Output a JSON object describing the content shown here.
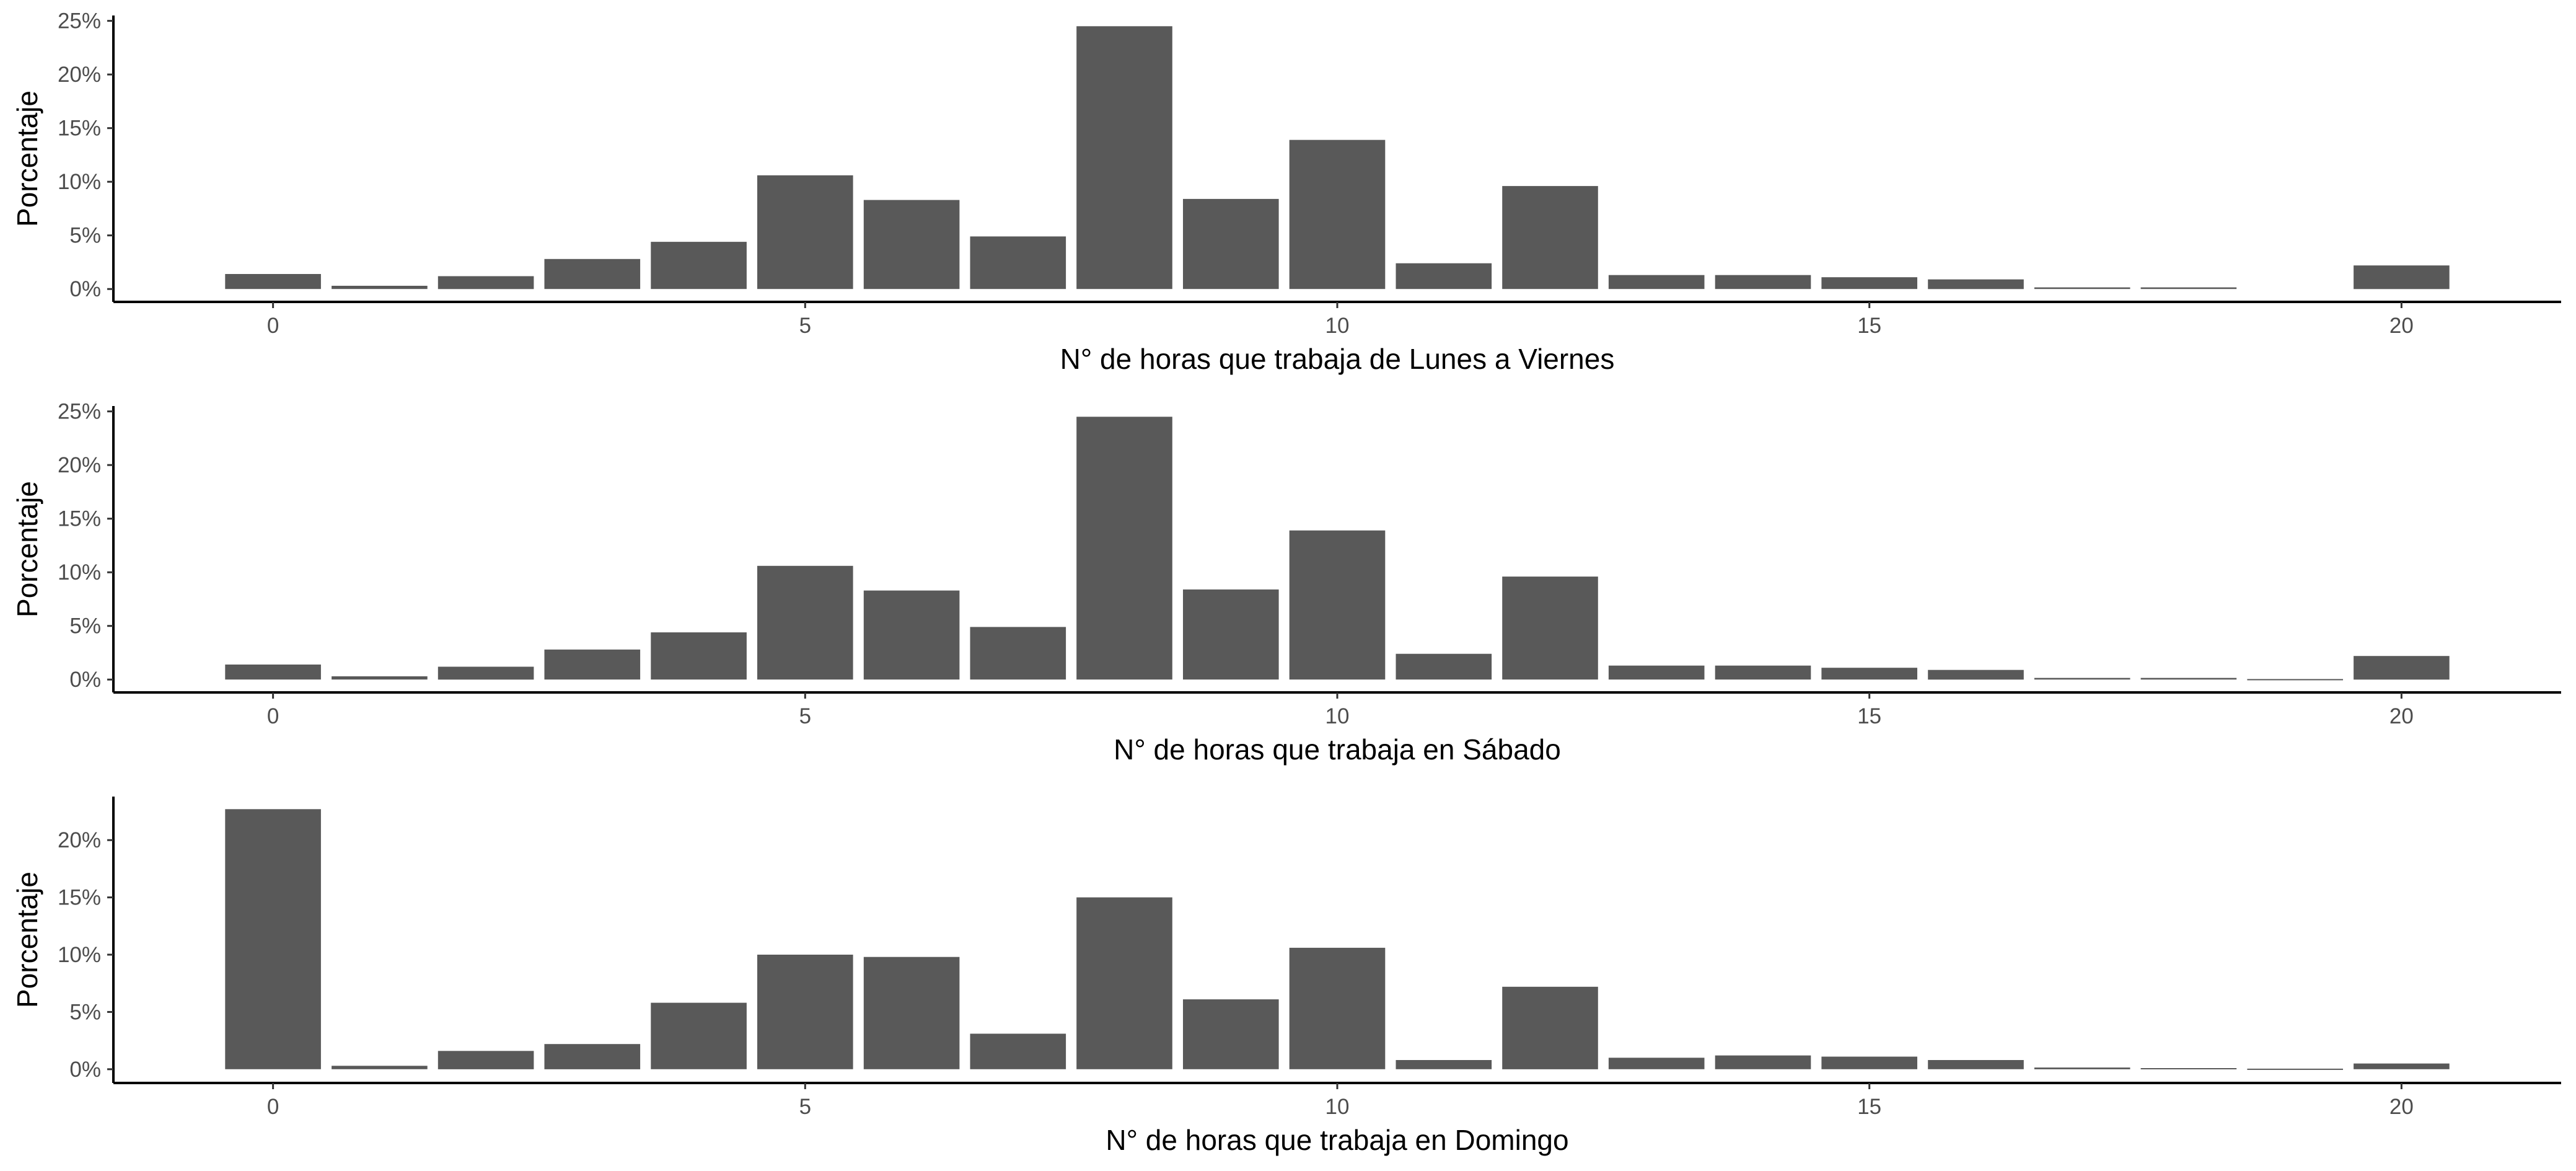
{
  "chart_data": [
    {
      "type": "bar",
      "xlabel": "N° de horas que trabaja de Lunes a Viernes",
      "ylabel": "Porcentaje",
      "x": [
        0,
        1,
        2,
        3,
        4,
        5,
        6,
        7,
        8,
        9,
        10,
        11,
        12,
        13,
        14,
        15,
        16,
        17,
        18,
        19,
        20
      ],
      "values": [
        1.4,
        0.3,
        1.2,
        2.8,
        4.4,
        10.6,
        8.3,
        4.9,
        24.5,
        8.4,
        13.9,
        2.4,
        9.6,
        1.3,
        1.3,
        1.1,
        0.9,
        0.15,
        0.15,
        0.0,
        2.2
      ],
      "xlim": [
        -1.5,
        21.5
      ],
      "ylim": [
        -1.2,
        25.5
      ],
      "xticks": [
        0,
        5,
        10,
        15,
        20
      ],
      "yticks": [
        0,
        5,
        10,
        15,
        20,
        25
      ],
      "ytick_labels": [
        "0%",
        "5%",
        "10%",
        "15%",
        "20%",
        "25%"
      ],
      "bar_color": "#595959",
      "grid": false
    },
    {
      "type": "bar",
      "xlabel": "N° de horas que trabaja en Sábado",
      "ylabel": "Porcentaje",
      "x": [
        0,
        1,
        2,
        3,
        4,
        5,
        6,
        7,
        8,
        9,
        10,
        11,
        12,
        13,
        14,
        15,
        16,
        17,
        18,
        19,
        20
      ],
      "values": [
        1.4,
        0.3,
        1.2,
        2.8,
        4.4,
        10.6,
        8.3,
        4.9,
        24.5,
        8.4,
        13.9,
        2.4,
        9.6,
        1.3,
        1.3,
        1.1,
        0.9,
        0.15,
        0.15,
        0.05,
        2.2
      ],
      "xlim": [
        -1.5,
        21.5
      ],
      "ylim": [
        -1.2,
        25.5
      ],
      "xticks": [
        0,
        5,
        10,
        15,
        20
      ],
      "yticks": [
        0,
        5,
        10,
        15,
        20,
        25
      ],
      "ytick_labels": [
        "0%",
        "5%",
        "10%",
        "15%",
        "20%",
        "25%"
      ],
      "bar_color": "#595959",
      "grid": false
    },
    {
      "type": "bar",
      "xlabel": "N° de horas que trabaja en Domingo",
      "ylabel": "Porcentaje",
      "x": [
        0,
        1,
        2,
        3,
        4,
        5,
        6,
        7,
        8,
        9,
        10,
        11,
        12,
        13,
        14,
        15,
        16,
        17,
        18,
        19,
        20
      ],
      "values": [
        22.7,
        0.3,
        1.6,
        2.2,
        5.8,
        10.0,
        9.8,
        3.1,
        15.0,
        6.1,
        10.6,
        0.8,
        7.2,
        1.0,
        1.2,
        1.1,
        0.8,
        0.15,
        0.1,
        0.05,
        0.5
      ],
      "xlim": [
        -1.5,
        21.5
      ],
      "ylim": [
        -1.2,
        23.8
      ],
      "xticks": [
        0,
        5,
        10,
        15,
        20
      ],
      "yticks": [
        0,
        5,
        10,
        15,
        20
      ],
      "ytick_labels": [
        "0%",
        "5%",
        "10%",
        "15%",
        "20%"
      ],
      "bar_color": "#595959",
      "grid": false
    }
  ]
}
